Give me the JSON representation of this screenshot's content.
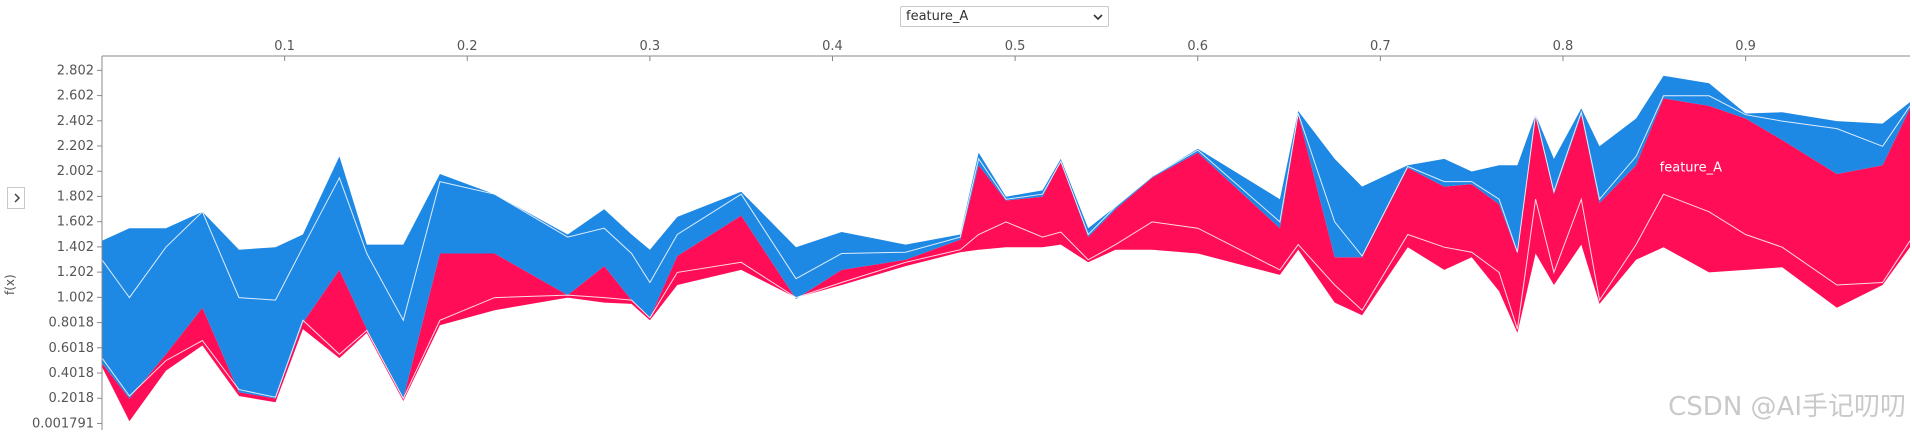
{
  "controls": {
    "feature_select": "feature_A",
    "ylabel": "f(x)"
  },
  "watermark": "CSDN @AI手记叨叨",
  "colors": {
    "positive": "#ff0d57",
    "negative": "#1e88e5",
    "axis": "#888888",
    "tick_text": "#555555",
    "separator": "#ffffff"
  },
  "chart_data": {
    "type": "area",
    "ylabel": "f(x)",
    "xlim": [
      0.0,
      0.99
    ],
    "ylim": [
      -0.05,
      2.9
    ],
    "x_ticks": [
      0.1,
      0.2,
      0.3,
      0.4,
      0.5,
      0.6,
      0.7,
      0.8,
      0.9
    ],
    "y_ticks": [
      "2.802",
      "2.602",
      "2.402",
      "2.202",
      "2.002",
      "1.802",
      "1.602",
      "1.402",
      "1.202",
      "1.002",
      "0.8018",
      "0.6018",
      "0.4018",
      "0.2018",
      "0.001791"
    ],
    "series_label": "feature_A",
    "label_at": [
      0.87,
      2.0
    ],
    "x": [
      0.0,
      0.015,
      0.035,
      0.055,
      0.075,
      0.095,
      0.11,
      0.13,
      0.145,
      0.165,
      0.185,
      0.215,
      0.255,
      0.275,
      0.29,
      0.3,
      0.315,
      0.35,
      0.38,
      0.405,
      0.44,
      0.47,
      0.48,
      0.495,
      0.515,
      0.525,
      0.54,
      0.555,
      0.575,
      0.6,
      0.645,
      0.655,
      0.675,
      0.69,
      0.715,
      0.735,
      0.75,
      0.765,
      0.775,
      0.785,
      0.795,
      0.81,
      0.82,
      0.84,
      0.855,
      0.88,
      0.9,
      0.92,
      0.95,
      0.975,
      0.99
    ],
    "lower": [
      0.45,
      0.02,
      0.42,
      0.62,
      0.22,
      0.17,
      0.75,
      0.52,
      0.72,
      0.18,
      0.78,
      0.9,
      1.0,
      0.96,
      0.95,
      0.82,
      1.1,
      1.22,
      1.0,
      1.1,
      1.25,
      1.36,
      1.38,
      1.4,
      1.4,
      1.42,
      1.28,
      1.38,
      1.38,
      1.35,
      1.18,
      1.38,
      0.96,
      0.86,
      1.4,
      1.22,
      1.32,
      1.05,
      0.72,
      1.35,
      1.1,
      1.42,
      0.95,
      1.3,
      1.4,
      1.2,
      1.22,
      1.24,
      0.92,
      1.1,
      1.4
    ],
    "base": [
      0.48,
      0.2,
      0.55,
      0.92,
      0.25,
      0.2,
      0.8,
      1.22,
      0.75,
      0.2,
      1.35,
      1.35,
      1.02,
      1.25,
      0.98,
      0.84,
      1.33,
      1.65,
      0.99,
      1.22,
      1.3,
      1.46,
      2.05,
      1.77,
      1.8,
      2.08,
      1.48,
      1.7,
      1.95,
      2.15,
      1.55,
      2.45,
      1.32,
      1.32,
      2.03,
      1.88,
      1.9,
      1.74,
      1.35,
      2.44,
      1.82,
      2.45,
      1.75,
      2.05,
      2.58,
      2.52,
      2.42,
      2.25,
      1.98,
      2.05,
      2.5
    ],
    "upper": [
      1.45,
      1.55,
      1.55,
      1.68,
      1.38,
      1.4,
      1.5,
      2.12,
      1.42,
      1.42,
      1.98,
      1.82,
      1.5,
      1.7,
      1.5,
      1.38,
      1.64,
      1.84,
      1.4,
      1.52,
      1.42,
      1.5,
      2.15,
      1.8,
      1.85,
      2.1,
      1.55,
      1.72,
      1.96,
      2.18,
      1.78,
      2.48,
      2.1,
      1.88,
      2.05,
      2.1,
      2.0,
      2.05,
      2.05,
      2.45,
      2.1,
      2.5,
      2.2,
      2.42,
      2.76,
      2.7,
      2.46,
      2.47,
      2.4,
      2.38,
      2.55
    ],
    "separators": [
      [
        0.52,
        0.22,
        0.5,
        0.66,
        0.27,
        0.21,
        0.82,
        0.55,
        0.74,
        0.2,
        0.82,
        1.0,
        1.02,
        1.0,
        0.98,
        0.84,
        1.2,
        1.28,
        1.0,
        1.12,
        1.28,
        1.38,
        1.5,
        1.6,
        1.48,
        1.52,
        1.3,
        1.42,
        1.6,
        1.55,
        1.22,
        1.42,
        1.1,
        0.9,
        1.5,
        1.4,
        1.36,
        1.2,
        0.75,
        1.78,
        1.2,
        1.78,
        0.98,
        1.42,
        1.82,
        1.68,
        1.5,
        1.4,
        1.1,
        1.12,
        1.45
      ],
      [
        1.3,
        1.0,
        1.4,
        1.68,
        1.0,
        0.98,
        1.4,
        1.95,
        1.35,
        0.82,
        1.92,
        1.82,
        1.48,
        1.55,
        1.35,
        1.12,
        1.5,
        1.82,
        1.15,
        1.35,
        1.36,
        1.48,
        2.1,
        1.78,
        1.82,
        2.08,
        1.5,
        1.72,
        1.96,
        2.17,
        1.6,
        2.46,
        1.6,
        1.33,
        2.04,
        1.92,
        1.92,
        1.78,
        1.36,
        2.45,
        1.84,
        2.47,
        1.78,
        2.12,
        2.6,
        2.6,
        2.45,
        2.4,
        2.34,
        2.2,
        2.52
      ]
    ]
  }
}
